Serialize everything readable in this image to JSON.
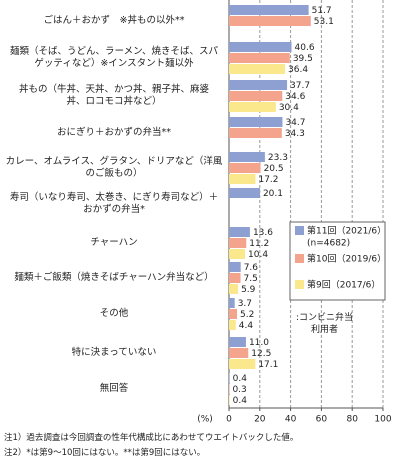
{
  "chart_data": {
    "type": "barh",
    "categories": [
      "ごはん＋おかず　※丼もの以外**",
      "麺類（そば、うどん、ラーメン、焼きそば、スパ\nゲッティなど）※インスタント麺以外",
      "丼もの（牛丼、天丼、かつ丼、親子丼、麻婆\n丼、ロコモコ丼など）",
      "おにぎり＋おかずの弁当**",
      "カレー、オムライス、グラタン、ドリアなど（洋風\nのご飯もの）",
      "寿司（いなり寿司、太巻き、にぎり寿司など）＋\nおかずの弁当*",
      "チャーハン",
      "麺類＋ご飯類（焼きそばチャーハン弁当など）",
      "その他",
      "特に決まっていない",
      "無回答"
    ],
    "series": [
      {
        "name": "第11回（2021/6）",
        "color": "#8e9fd2",
        "values": [
          51.7,
          40.6,
          37.7,
          34.7,
          23.3,
          20.1,
          13.6,
          7.6,
          3.7,
          11.0,
          0.4
        ],
        "value_labels": [
          "51.7",
          "40.6",
          "37.7",
          "34.7",
          "23.3",
          "20.1",
          "13.6",
          "7.6",
          "3.7",
          "11.0",
          "0.4"
        ]
      },
      {
        "name": "第10回（2019/6）",
        "color": "#f4a48c",
        "values": [
          53.1,
          39.5,
          34.6,
          34.3,
          20.5,
          null,
          11.2,
          7.5,
          5.2,
          12.5,
          0.3
        ],
        "value_labels": [
          "53.1",
          "39.5",
          "34.6",
          "34.3",
          "20.5",
          null,
          "11.2",
          "7.5",
          "5.2",
          "12.5",
          "0.3"
        ]
      },
      {
        "name": "第9回（2017/6）",
        "color": "#fce88c",
        "values": [
          null,
          36.4,
          30.4,
          null,
          17.2,
          null,
          10.4,
          5.9,
          4.4,
          17.1,
          0.4
        ],
        "value_labels": [
          null,
          "36.4",
          "30.4",
          null,
          "17.2",
          null,
          "10.4",
          "5.9",
          "4.4",
          "17.1",
          "0.4"
        ]
      }
    ],
    "legend_note": "(n=4682)",
    "annotation": ":コンビニ弁当\n利用者",
    "xlabel": "(%)",
    "xlim": [
      0,
      100
    ],
    "xticks": [
      0,
      20,
      40,
      60,
      80,
      100
    ],
    "grid": true,
    "notes": [
      "注1）過去調査は今回調査の性年代構成比にあわせてウエイトバックした値。",
      "注2）*は第9～10回にはない。**は第9回にはない。"
    ]
  }
}
